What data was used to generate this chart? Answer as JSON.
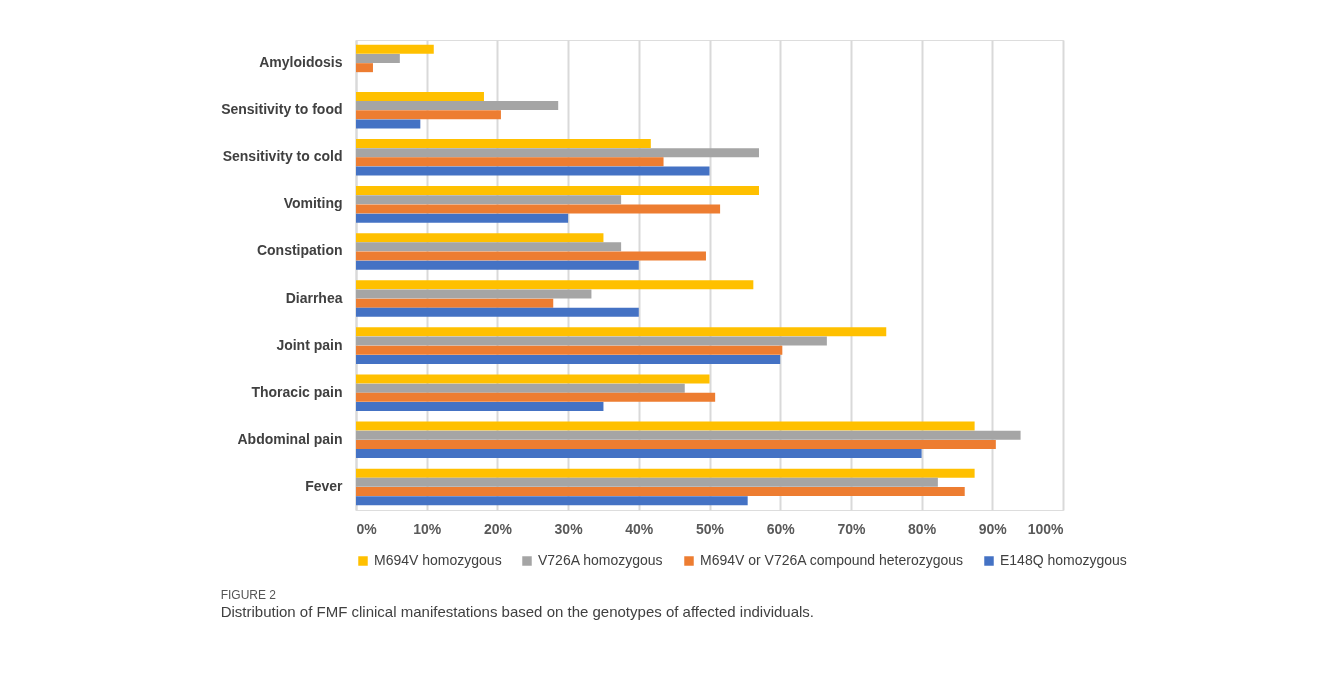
{
  "chart_data": {
    "type": "bar",
    "orientation": "horizontal",
    "title": "FIGURE 2",
    "subtitle": "Distribution of FMF clinical manifestations based on the genotypes of affected individuals.",
    "categories": [
      "Amyloidosis",
      "Sensitivity to food",
      "Sensitivity to cold",
      "Vomiting",
      "Constipation",
      "Diarrhea",
      "Joint pain",
      "Thoracic pain",
      "Abdominal pain",
      "Fever"
    ],
    "series": [
      {
        "name": "M694V homozygous",
        "color": "#ffc000",
        "values": [
          11.0,
          18.1,
          41.7,
          57.0,
          35.0,
          56.2,
          75.0,
          50.0,
          87.5,
          87.5
        ]
      },
      {
        "name": "V726A homozygous",
        "color": "#a5a5a5",
        "values": [
          6.2,
          28.6,
          57.0,
          37.5,
          37.5,
          33.3,
          66.6,
          46.5,
          94.0,
          82.3
        ]
      },
      {
        "name": "M694V or V726A compound heterozygous",
        "color": "#ed7d31",
        "values": [
          2.4,
          20.5,
          43.5,
          51.5,
          49.5,
          27.9,
          60.3,
          50.8,
          90.5,
          86.1
        ]
      },
      {
        "name": "E148Q homozygous",
        "color": "#4472c4",
        "values": [
          null,
          9.1,
          50.0,
          30.0,
          40.0,
          40.0,
          60.0,
          35.0,
          80.0,
          55.4
        ]
      }
    ],
    "xlim": [
      0,
      100
    ],
    "xticks": [
      {
        "value": 0,
        "label": "0%"
      },
      {
        "value": 10,
        "label": "10%"
      },
      {
        "value": 20,
        "label": "20%"
      },
      {
        "value": 30,
        "label": "30%"
      },
      {
        "value": 40,
        "label": "40%"
      },
      {
        "value": 50,
        "label": "50%"
      },
      {
        "value": 60,
        "label": "60%"
      },
      {
        "value": 70,
        "label": "70%"
      },
      {
        "value": 80,
        "label": "80%"
      },
      {
        "value": 90,
        "label": "90%"
      },
      {
        "value": 100,
        "label": "100%"
      }
    ],
    "grid": "x",
    "legend": "bottom"
  }
}
